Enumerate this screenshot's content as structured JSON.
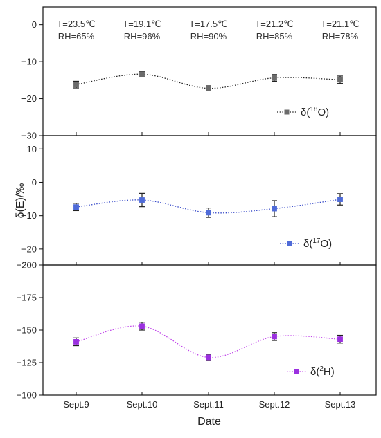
{
  "chart_data": [
    {
      "type": "line",
      "panel": "top",
      "categories": [
        "Sept.9",
        "Sept.10",
        "Sept.11",
        "Sept.12",
        "Sept.13"
      ],
      "series": [
        {
          "name": "δ(18O)",
          "label_base": "δ(",
          "label_sup": "18",
          "label_tail": "O)",
          "color": "#6b6b6b",
          "values": [
            -16.2,
            -13.4,
            -17.2,
            -14.4,
            -14.9
          ],
          "errors": [
            0.9,
            0.7,
            0.7,
            0.9,
            1.0
          ]
        }
      ],
      "ylim": [
        -30,
        4.8
      ],
      "yticks": [
        0,
        -10,
        -20,
        -30
      ],
      "legend": "bottom-right",
      "annotations": [
        {
          "T": "T=23.5℃",
          "RH": "RH=65%"
        },
        {
          "T": "T=19.1℃",
          "RH": "RH=96%"
        },
        {
          "T": "T=17.5℃",
          "RH": "RH=90%"
        },
        {
          "T": "T=21.2℃",
          "RH": "RH=85%"
        },
        {
          "T": "T=21.1℃",
          "RH": "RH=78%"
        }
      ]
    },
    {
      "type": "line",
      "panel": "middle",
      "categories": [
        "Sept.9",
        "Sept.10",
        "Sept.11",
        "Sept.12",
        "Sept.13"
      ],
      "series": [
        {
          "name": "δ(17O)",
          "label_base": "δ(",
          "label_sup": "17",
          "label_tail": "O)",
          "color": "#4f6bd8",
          "values": [
            -7.4,
            -5.3,
            -9.1,
            -7.9,
            -5.1
          ],
          "errors": [
            1.1,
            2.0,
            1.4,
            2.4,
            1.7
          ]
        }
      ],
      "ylim": [
        -24.8,
        14
      ],
      "yticks": [
        10,
        0,
        -10,
        -20
      ],
      "legend": "bottom-right"
    },
    {
      "type": "line",
      "panel": "bottom",
      "categories": [
        "Sept.9",
        "Sept.10",
        "Sept.11",
        "Sept.12",
        "Sept.13"
      ],
      "series": [
        {
          "name": "δ(2H)",
          "label_base": "δ(",
          "label_sup": "2",
          "label_tail": "H)",
          "color": "#9b30e0",
          "values": [
            -141,
            -153,
            -129,
            -145,
            -143
          ],
          "errors": [
            3,
            3,
            2,
            3,
            3
          ]
        }
      ],
      "ylim": [
        -100,
        -200
      ],
      "yticks": [
        -200,
        -175,
        -150,
        -125,
        -100
      ],
      "legend": "bottom-right"
    }
  ],
  "labels": {
    "ylabel": "δ(E)/‰",
    "xlabel": "Date",
    "bottom_ticks": [
      "Sept.9",
      "Sept.10",
      "Sept.11",
      "Sept.12",
      "Sept.13"
    ]
  },
  "colors": {
    "frame": "#111111",
    "line_top": "#222222",
    "line_mid": "#3548c8",
    "line_bottom": "#c044ea"
  }
}
